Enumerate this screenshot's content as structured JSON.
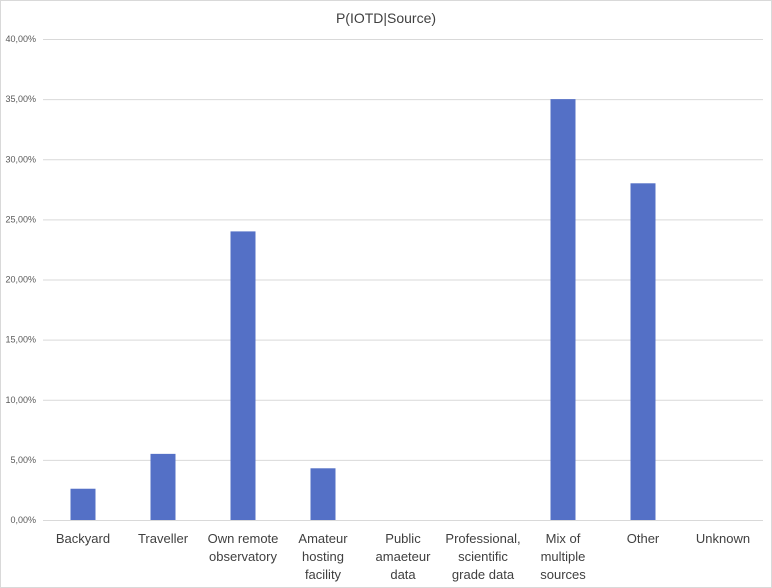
{
  "chart_data": {
    "type": "bar",
    "title": "P(IOTD|Source)",
    "xlabel": "",
    "ylabel": "",
    "categories": [
      [
        "Backyard"
      ],
      [
        "Traveller"
      ],
      [
        "Own remote",
        "observatory"
      ],
      [
        "Amateur",
        "hosting",
        "facility"
      ],
      [
        "Public",
        "amaeteur",
        "data"
      ],
      [
        "Professional,",
        "scientific",
        "grade data"
      ],
      [
        "Mix of",
        "multiple",
        "sources"
      ],
      [
        "Other"
      ],
      [
        "Unknown"
      ]
    ],
    "values": [
      2.6,
      5.5,
      24.0,
      4.3,
      0,
      0,
      35.0,
      28.0,
      0
    ],
    "ylim": [
      0,
      40
    ],
    "yticks": [
      "0,00%",
      "5,00%",
      "10,00%",
      "15,00%",
      "20,00%",
      "25,00%",
      "30,00%",
      "35,00%",
      "40,00%"
    ],
    "grid": true,
    "legend": "none",
    "bar_color": "#5470c6"
  }
}
